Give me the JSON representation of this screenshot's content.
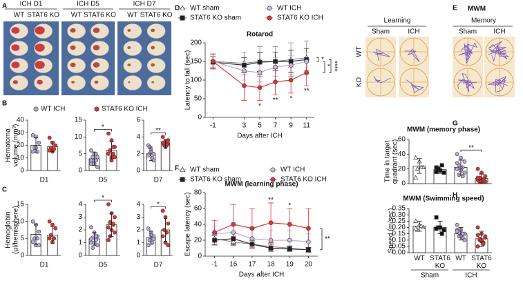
{
  "panel_labels": [
    "A",
    "B",
    "C",
    "D",
    "E",
    "F",
    "G",
    "H"
  ],
  "panel_a": {
    "columns": [
      {
        "title": "ICH D1",
        "groups": [
          "WT",
          "STAT6 KO"
        ]
      },
      {
        "title": "ICH D5",
        "groups": [
          "WT",
          "STAT6 KO"
        ]
      },
      {
        "title": "ICH D7",
        "groups": [
          "WT",
          "STAT6 KO"
        ]
      }
    ]
  },
  "panel_e": {
    "title": "MWM",
    "phases": [
      {
        "label": "Learning",
        "columns": [
          "Sham",
          "ICH"
        ]
      },
      {
        "label": "Memory",
        "columns": [
          "Sham",
          "ICH"
        ]
      }
    ],
    "rows": [
      "WT",
      "KO"
    ]
  },
  "chart_data": [
    {
      "type": "dotbar",
      "ylabel": [
        "Hematoma",
        "volume (mm³)"
      ],
      "xlabel": "D1",
      "ylim": [
        0,
        40
      ],
      "yticks": [
        0,
        10,
        20,
        30,
        40
      ],
      "groups": [
        {
          "name": "WT ICH",
          "color": "#b9a6dc",
          "marker": "circle",
          "value": 20,
          "error": 6,
          "points": [
            28,
            27,
            22,
            18,
            15,
            15,
            18
          ]
        },
        {
          "name": "STAT6 KO ICH",
          "color": "#e2332f",
          "marker": "circle",
          "value": 19,
          "error": 4,
          "points": [
            26,
            22,
            20,
            18,
            17,
            16,
            15
          ]
        }
      ]
    },
    {
      "type": "dotbar",
      "xlabel": "D5",
      "ylim": [
        0,
        15
      ],
      "yticks": [
        0,
        5,
        10,
        15
      ],
      "significance": "*",
      "groups": [
        {
          "color": "#b9a6dc",
          "marker": "circle",
          "value": 3.5,
          "error": 2,
          "points": [
            6,
            5,
            4,
            3,
            3,
            2,
            2,
            1,
            4,
            5,
            3,
            2
          ]
        },
        {
          "color": "#e2332f",
          "marker": "circle",
          "value": 6,
          "error": 2.5,
          "points": [
            11,
            9,
            7,
            6,
            5,
            5,
            4,
            4,
            6,
            7,
            5,
            3
          ]
        }
      ]
    },
    {
      "type": "dotbar",
      "xlabel": "D7",
      "ylim": [
        0,
        6
      ],
      "yticks": [
        0,
        2,
        4,
        6
      ],
      "significance": "**",
      "groups": [
        {
          "color": "#b9a6dc",
          "marker": "circle",
          "value": 2,
          "error": 0.8,
          "points": [
            3,
            2.5,
            2,
            2,
            1.5,
            1.8,
            2.2,
            1.2,
            2.8
          ]
        },
        {
          "color": "#e2332f",
          "marker": "circle",
          "value": 3.2,
          "error": 0.5,
          "points": [
            4,
            3.5,
            3.2,
            3,
            3,
            3.3,
            2.8,
            3.6
          ]
        }
      ]
    },
    {
      "type": "dotbar",
      "ylabel": [
        "Hemoglobin",
        "(µl/hemisphere)"
      ],
      "xlabel": "D1",
      "ylim": [
        0,
        15
      ],
      "yticks": [
        0,
        5,
        10,
        15
      ],
      "groups": [
        {
          "color": "#b9a6dc",
          "marker": "circle",
          "value": 6.2,
          "error": 3,
          "points": [
            10,
            9,
            7,
            5,
            5,
            4,
            3,
            3
          ]
        },
        {
          "color": "#e2332f",
          "marker": "circle",
          "value": 6,
          "error": 2.5,
          "points": [
            10,
            9,
            8,
            6,
            5,
            5,
            4
          ]
        }
      ]
    },
    {
      "type": "dotbar",
      "xlabel": "D5",
      "ylim": [
        0,
        4
      ],
      "yticks": [
        0,
        1,
        2,
        3,
        4
      ],
      "significance": "*",
      "groups": [
        {
          "color": "#b9a6dc",
          "marker": "circle",
          "value": 1.3,
          "error": 0.5,
          "points": [
            2.2,
            1.8,
            1.5,
            1.4,
            1.2,
            1,
            1,
            0.8,
            0.6,
            1.5,
            1.3
          ]
        },
        {
          "color": "#e2332f",
          "marker": "circle",
          "value": 2.4,
          "error": 0.9,
          "points": [
            4,
            3.3,
            3,
            2.6,
            2.4,
            2.2,
            2,
            1.8,
            1.5,
            2.5,
            1.2
          ]
        }
      ]
    },
    {
      "type": "dotbar",
      "xlabel": "D7",
      "ylim": [
        0,
        4
      ],
      "yticks": [
        0,
        1,
        2,
        3,
        4
      ],
      "significance": "*",
      "groups": [
        {
          "color": "#b9a6dc",
          "marker": "circle",
          "value": 1.4,
          "error": 0.5,
          "points": [
            2.1,
            1.8,
            1.5,
            1.2,
            1,
            0.8,
            1.6,
            1.3
          ]
        },
        {
          "color": "#e2332f",
          "marker": "circle",
          "value": 2,
          "error": 0.9,
          "points": [
            3.5,
            3,
            2.5,
            2,
            1.8,
            1.5,
            1,
            0.8
          ]
        }
      ]
    },
    {
      "type": "line",
      "title": "Rotarod",
      "xlabel": "Days after ICH",
      "ylabel": "Latency to fall (sec)",
      "x": [
        -1,
        3,
        5,
        7,
        9,
        11
      ],
      "xlim": [
        -2,
        12
      ],
      "xticks": [
        -1,
        3,
        5,
        7,
        9,
        11
      ],
      "ylim": [
        0,
        200
      ],
      "yticks": [
        0,
        50,
        100,
        150,
        200
      ],
      "series": [
        {
          "name": "WT sham",
          "color": "#8a8a8a",
          "marker": "triangle",
          "marker_fill": "#ffffff",
          "values": [
            150,
            145,
            150,
            150,
            155,
            160
          ],
          "errors": [
            20,
            30,
            40,
            40,
            45,
            45
          ]
        },
        {
          "name": "STAT6 KO sham",
          "color": "#333333",
          "marker": "square",
          "marker_fill": "#222222",
          "values": [
            148,
            140,
            148,
            150,
            150,
            155
          ],
          "errors": [
            15,
            20,
            25,
            25,
            30,
            30
          ]
        },
        {
          "name": "WT ICH",
          "color": "#b9a6dc",
          "marker": "circle",
          "marker_fill": "#c9b9e8",
          "values": [
            150,
            125,
            120,
            135,
            140,
            150
          ],
          "errors": [
            20,
            25,
            25,
            25,
            25,
            25
          ]
        },
        {
          "name": "STAT6 KO ICH",
          "color": "#e2332f",
          "marker": "circle",
          "marker_fill": "#e2332f",
          "values": [
            150,
            85,
            80,
            95,
            100,
            120
          ],
          "errors": [
            20,
            40,
            35,
            35,
            35,
            35
          ]
        }
      ],
      "point_significance": [
        null,
        null,
        "*",
        "**",
        "*",
        "**"
      ],
      "bracket_labels": [
        "*",
        "*",
        "****"
      ]
    },
    {
      "type": "line",
      "title": "MWM (learning phase)",
      "xlabel": "Days after ICH",
      "ylabel": "Escape latency (sec)",
      "categories": [
        "-1",
        "16",
        "17",
        "18",
        "19",
        "20"
      ],
      "ylim": [
        0,
        80
      ],
      "yticks": [
        0,
        20,
        40,
        60,
        80
      ],
      "series": [
        {
          "name": "WT sham",
          "color": "#8a8a8a",
          "marker": "triangle",
          "marker_fill": "#ffffff",
          "values": [
            22,
            18,
            15,
            12,
            10,
            8
          ],
          "errors": [
            8,
            5,
            4,
            4,
            3,
            3
          ]
        },
        {
          "name": "STAT6 KO sham",
          "color": "#333333",
          "marker": "square",
          "marker_fill": "#222222",
          "values": [
            20,
            22,
            15,
            10,
            9,
            8
          ],
          "errors": [
            6,
            8,
            5,
            4,
            3,
            3
          ]
        },
        {
          "name": "WT ICH",
          "color": "#b9a6dc",
          "marker": "circle",
          "marker_fill": "#c9b9e8",
          "values": [
            28,
            30,
            22,
            20,
            20,
            18
          ],
          "errors": [
            10,
            12,
            12,
            12,
            12,
            10
          ]
        },
        {
          "name": "STAT6 KO ICH",
          "color": "#e2332f",
          "marker": "circle",
          "marker_fill": "#e2332f",
          "values": [
            30,
            40,
            35,
            42,
            40,
            35
          ],
          "errors": [
            15,
            25,
            25,
            25,
            20,
            25
          ]
        }
      ],
      "point_significance": [
        null,
        null,
        null,
        "**",
        "*",
        null
      ],
      "bracket_labels": [
        "**"
      ]
    },
    {
      "type": "dotbar",
      "title": "MWM (memory phase)",
      "ylabel": [
        "Time in target",
        "quadrant (sec)"
      ],
      "ylim": [
        0,
        60
      ],
      "yticks": [
        0,
        20,
        40,
        60
      ],
      "significance": "**",
      "groups": [
        {
          "color": "#ffffff",
          "marker": "triangle",
          "value": 24,
          "error": 10,
          "points": [
            35,
            30,
            22,
            20,
            22,
            8
          ]
        },
        {
          "color": "#111111",
          "marker": "square",
          "value": 19,
          "error": 5,
          "points": [
            22,
            18,
            15,
            20,
            25,
            16
          ]
        },
        {
          "color": "#b9a6dc",
          "marker": "circle",
          "value": 22,
          "error": 10,
          "points": [
            40,
            35,
            30,
            25,
            22,
            20,
            18,
            15,
            12,
            10,
            28,
            22
          ]
        },
        {
          "color": "#e2332f",
          "marker": "circle",
          "value": 7,
          "error": 6,
          "points": [
            20,
            15,
            10,
            8,
            6,
            5,
            4,
            3,
            2,
            5,
            8,
            3
          ]
        }
      ]
    },
    {
      "type": "dotbar",
      "title": "MWM (Swimming speed)",
      "ylabel": "Speed (m/sec)",
      "ylim": [
        0,
        0.35
      ],
      "yticks": [
        {
          "value": 0,
          "label": "0.00"
        },
        0.05,
        {
          "value": 0.1,
          "label": "0.10"
        },
        0.15,
        {
          "value": 0.2,
          "label": "0.20"
        },
        0.25,
        {
          "value": 0.3,
          "label": "0.30"
        },
        0.35
      ],
      "categories": [
        "WT",
        "STAT6 KO",
        "WT",
        "STAT6 KO"
      ],
      "group_labels": [
        "Sham",
        "ICH"
      ],
      "groups": [
        {
          "color": "#ffffff",
          "marker": "triangle",
          "value": 0.21,
          "error": 0.04,
          "points": [
            0.25,
            0.22,
            0.2,
            0.18,
            0.21,
            0.19
          ]
        },
        {
          "color": "#111111",
          "marker": "square",
          "value": 0.2,
          "error": 0.05,
          "points": [
            0.28,
            0.2,
            0.18,
            0.2,
            0.15,
            0.19
          ]
        },
        {
          "color": "#b9a6dc",
          "marker": "circle",
          "value": 0.15,
          "error": 0.05,
          "points": [
            0.22,
            0.18,
            0.15,
            0.13,
            0.12,
            0.18,
            0.14,
            0.1,
            0.16,
            0.15,
            0.17,
            0.13
          ]
        },
        {
          "color": "#e2332f",
          "marker": "circle",
          "value": 0.11,
          "error": 0.06,
          "points": [
            0.2,
            0.15,
            0.12,
            0.1,
            0.08,
            0.05,
            0.09,
            0.13,
            0.11,
            0.07,
            0.14,
            0.1
          ]
        }
      ]
    }
  ]
}
